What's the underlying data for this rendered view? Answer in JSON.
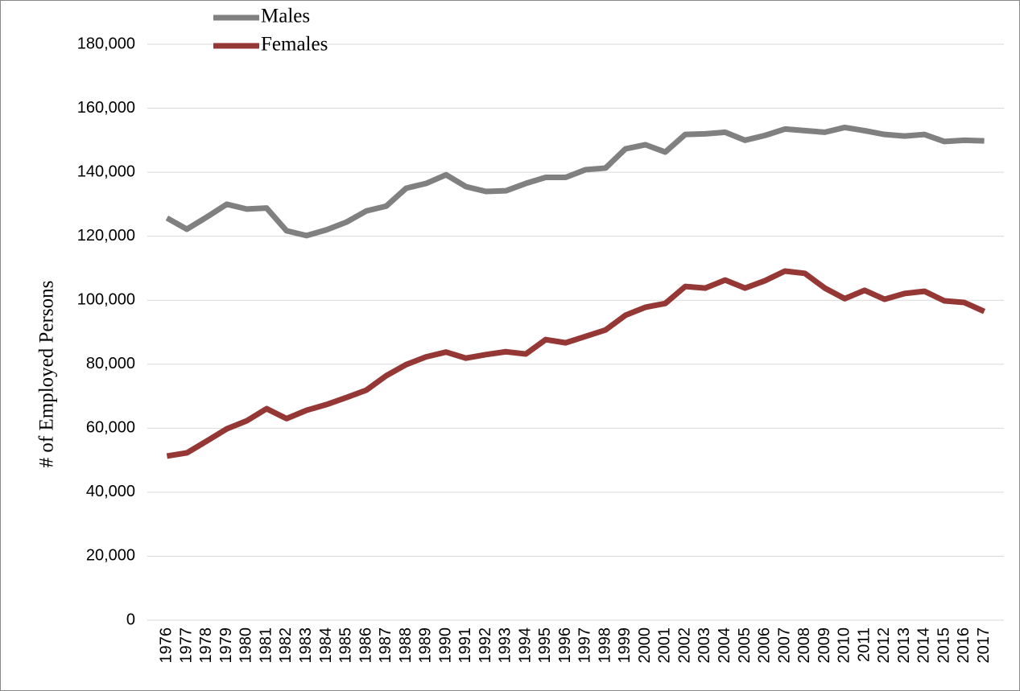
{
  "chart_data": {
    "type": "line",
    "y_label": "# of Employed Persons",
    "categories": [
      "1976",
      "1977",
      "1978",
      "1979",
      "1980",
      "1981",
      "1982",
      "1983",
      "1984",
      "1985",
      "1986",
      "1987",
      "1988",
      "1989",
      "1990",
      "1991",
      "1992",
      "1993",
      "1994",
      "1995",
      "1996",
      "1997",
      "1998",
      "1999",
      "2000",
      "2001",
      "2002",
      "2003",
      "2004",
      "2005",
      "2006",
      "2007",
      "2008",
      "2009",
      "2010",
      "2011",
      "2012",
      "2013",
      "2014",
      "2015",
      "2016",
      "2017"
    ],
    "series": [
      {
        "name": "Males",
        "color": "#808080",
        "values": [
          125700,
          122200,
          126000,
          130000,
          128500,
          128800,
          121700,
          120200,
          122000,
          124400,
          127900,
          129400,
          135000,
          136500,
          139200,
          135500,
          134000,
          134200,
          136500,
          138400,
          138400,
          140800,
          141300,
          147300,
          148600,
          146300,
          151800,
          152000,
          152500,
          150000,
          151500,
          153500,
          153000,
          152500,
          154000,
          153000,
          151800,
          151300,
          151800,
          149600,
          150000,
          149800
        ]
      },
      {
        "name": "Females",
        "color": "#953735",
        "values": [
          51300,
          52300,
          56000,
          59800,
          62300,
          66100,
          63000,
          65600,
          67400,
          69600,
          71900,
          76400,
          79900,
          82300,
          83800,
          81900,
          83000,
          83900,
          83200,
          87700,
          86700,
          88700,
          90700,
          95300,
          97800,
          99000,
          104300,
          103800,
          106300,
          103800,
          106100,
          109100,
          108400,
          103800,
          100500,
          103100,
          100300,
          102100,
          102800,
          99800,
          99300,
          96500
        ]
      }
    ],
    "ylim": [
      0,
      180000
    ],
    "yticks": [
      0,
      {
        "value": 20000,
        "label": "20,000"
      },
      {
        "value": 40000,
        "label": "40,000"
      },
      {
        "value": 60000,
        "label": "60,000"
      },
      {
        "value": 80000,
        "label": "80,000"
      },
      {
        "value": 100000,
        "label": "100,000"
      },
      {
        "value": 120000,
        "label": "120,000"
      },
      {
        "value": 140000,
        "label": "140,000"
      },
      {
        "value": 160000,
        "label": "160,000"
      },
      {
        "value": 180000,
        "label": "180,000"
      }
    ],
    "grid": true,
    "legend": "top-left"
  }
}
